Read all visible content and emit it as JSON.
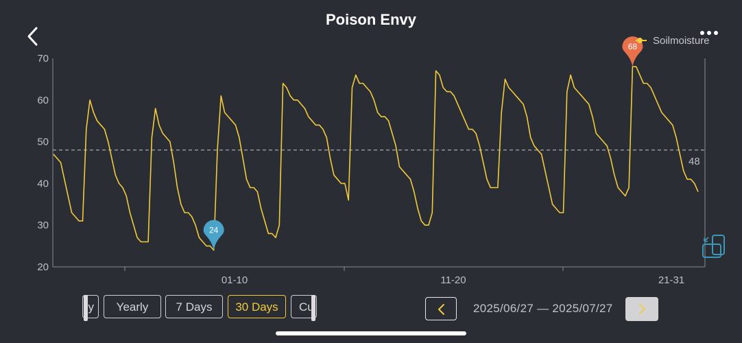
{
  "header": {
    "title": "Poison Envy"
  },
  "tabs": [
    {
      "label": "y",
      "partial": "left"
    },
    {
      "label": "Yearly"
    },
    {
      "label": "7 Days"
    },
    {
      "label": "30 Days",
      "active": true
    },
    {
      "label": "Cu",
      "partial": "right"
    }
  ],
  "date_range": {
    "label": "2025/06/27 — 2025/07/27"
  },
  "colors": {
    "background": "#2b2d35",
    "line": "#f2cb3b",
    "max_marker": "#e8704a",
    "min_marker": "#4aa3c9",
    "accent": "#f2cb3b"
  },
  "icons": {
    "back": "chevron-left-icon",
    "more": "more-dots-icon",
    "prev": "chevron-left-icon",
    "next": "chevron-right-icon",
    "rotate": "rotate-screen-icon"
  },
  "chart_data": {
    "type": "line",
    "series": [
      {
        "name": "Soilmoisture",
        "values": [
          47,
          46,
          45,
          41,
          37,
          33,
          32,
          31,
          31,
          53,
          60,
          57,
          55,
          54,
          53,
          50,
          46,
          42,
          40,
          39,
          37,
          33,
          30,
          27,
          26,
          26,
          26,
          51,
          58,
          54,
          52,
          51,
          50,
          45,
          39,
          35,
          33,
          33,
          32,
          30,
          27,
          26,
          25,
          25,
          24,
          48,
          61,
          57,
          56,
          55,
          54,
          51,
          46,
          41,
          39,
          39,
          38,
          34,
          31,
          28,
          28,
          27,
          30,
          64,
          63,
          61,
          60,
          60,
          59,
          58,
          56,
          55,
          54,
          54,
          53,
          51,
          46,
          42,
          41,
          40,
          40,
          36,
          63,
          66,
          64,
          64,
          63,
          62,
          60,
          57,
          56,
          56,
          55,
          52,
          49,
          44,
          43,
          42,
          41,
          38,
          34,
          31,
          30,
          30,
          33,
          67,
          66,
          63,
          62,
          62,
          61,
          59,
          57,
          55,
          53,
          53,
          52,
          49,
          45,
          41,
          39,
          39,
          39,
          57,
          65,
          63,
          62,
          61,
          60,
          59,
          56,
          51,
          49,
          48,
          47,
          43,
          39,
          35,
          34,
          33,
          33,
          62,
          66,
          63,
          62,
          61,
          60,
          59,
          56,
          52,
          51,
          50,
          49,
          46,
          42,
          39,
          38,
          37,
          39,
          68,
          68,
          66,
          64,
          64,
          63,
          61,
          59,
          57,
          56,
          55,
          54,
          51,
          47,
          43,
          41,
          41,
          40,
          38
        ]
      }
    ],
    "x_tick_labels": [
      "01-10",
      "11-20",
      "21-31"
    ],
    "ylim": [
      20,
      70
    ],
    "y_ticks": [
      20,
      30,
      40,
      50,
      60,
      70
    ],
    "average": 48,
    "max_marker": 68,
    "min_marker": 24,
    "legend": "Soilmoisture",
    "legend_position": "top-right",
    "grid": false
  }
}
